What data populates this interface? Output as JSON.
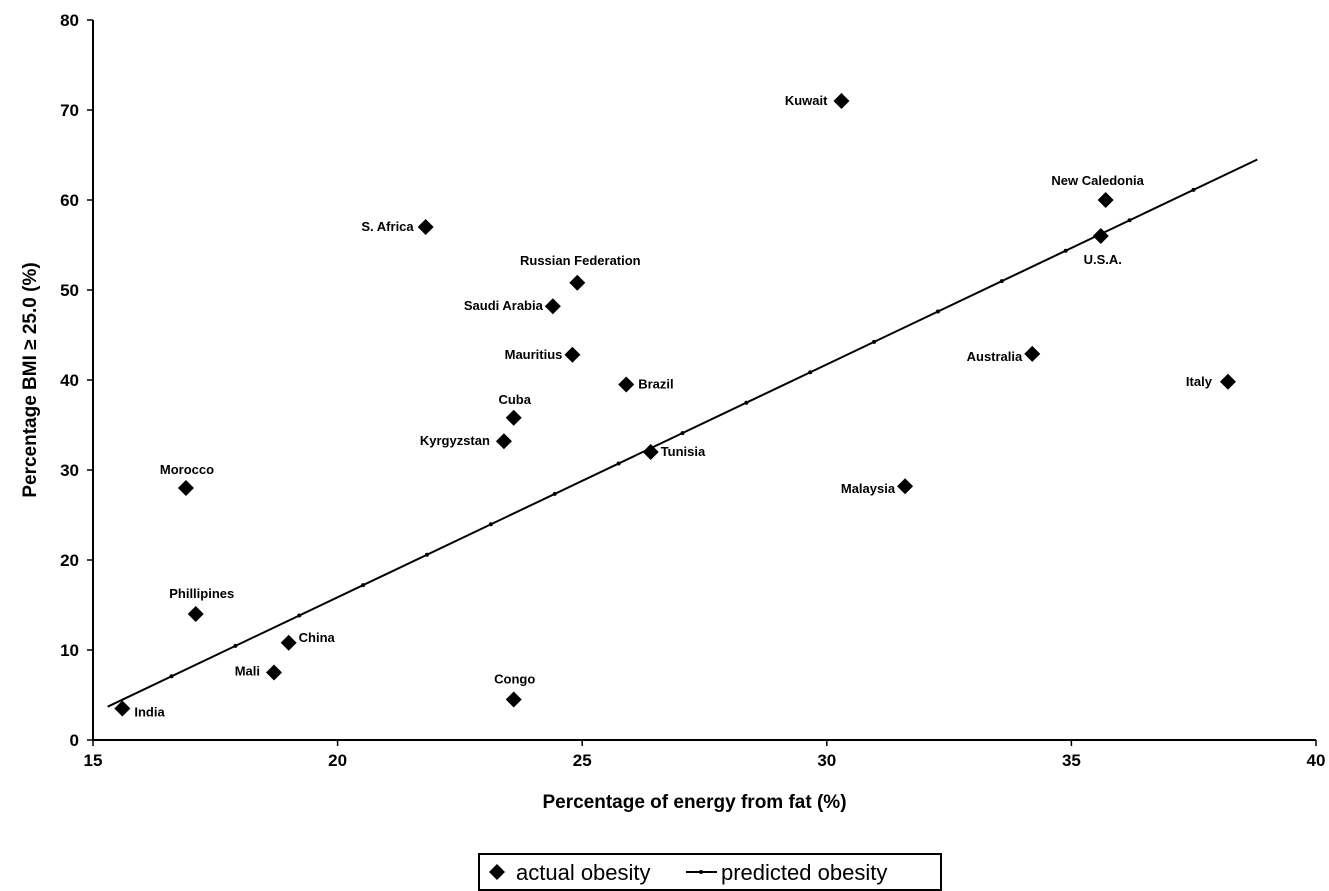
{
  "chart_data": {
    "type": "scatter",
    "xlabel": "Percentage of energy from fat (%)",
    "ylabel": "Percentage BMI ≥ 25.0 (%)",
    "xlim": [
      15,
      40
    ],
    "ylim": [
      0,
      80
    ],
    "x_ticks": [
      "15",
      "20",
      "25",
      "30",
      "35",
      "40"
    ],
    "y_ticks": [
      "0",
      "10",
      "20",
      "30",
      "40",
      "50",
      "60",
      "70",
      "80"
    ],
    "grid": false,
    "legend_position": "bottom-center",
    "series": [
      {
        "name": "actual obesity",
        "marker": "diamond",
        "color": "#000000",
        "points": [
          {
            "label": "India",
            "x": 15.6,
            "y": 3.5
          },
          {
            "label": "Mali",
            "x": 18.7,
            "y": 7.5
          },
          {
            "label": "China",
            "x": 19.0,
            "y": 10.8
          },
          {
            "label": "Phillipines",
            "x": 17.1,
            "y": 14.0
          },
          {
            "label": "Morocco",
            "x": 16.9,
            "y": 28.0
          },
          {
            "label": "Congo",
            "x": 23.6,
            "y": 4.5
          },
          {
            "label": "Kyrgyzstan",
            "x": 23.4,
            "y": 33.2
          },
          {
            "label": "Cuba",
            "x": 23.6,
            "y": 35.8
          },
          {
            "label": "Tunisia",
            "x": 26.4,
            "y": 32.0
          },
          {
            "label": "Mauritius",
            "x": 24.8,
            "y": 42.8
          },
          {
            "label": "Brazil",
            "x": 25.9,
            "y": 39.5
          },
          {
            "label": "Saudi Arabia",
            "x": 24.4,
            "y": 48.2
          },
          {
            "label": "Russian Federation",
            "x": 24.9,
            "y": 50.8
          },
          {
            "label": "S. Africa",
            "x": 21.8,
            "y": 57.0
          },
          {
            "label": "Kuwait",
            "x": 30.3,
            "y": 71.0
          },
          {
            "label": "Malaysia",
            "x": 31.6,
            "y": 28.2
          },
          {
            "label": "Australia",
            "x": 34.2,
            "y": 42.9
          },
          {
            "label": "New Caledonia",
            "x": 35.7,
            "y": 60.0
          },
          {
            "label": "U.S.A.",
            "x": 35.6,
            "y": 56.0
          },
          {
            "label": "Italy",
            "x": 38.2,
            "y": 39.8
          }
        ]
      },
      {
        "name": "predicted obesity",
        "line": true,
        "color": "#000000",
        "x": [
          15.3,
          38.8
        ],
        "y": [
          3.7,
          64.5
        ]
      }
    ]
  }
}
